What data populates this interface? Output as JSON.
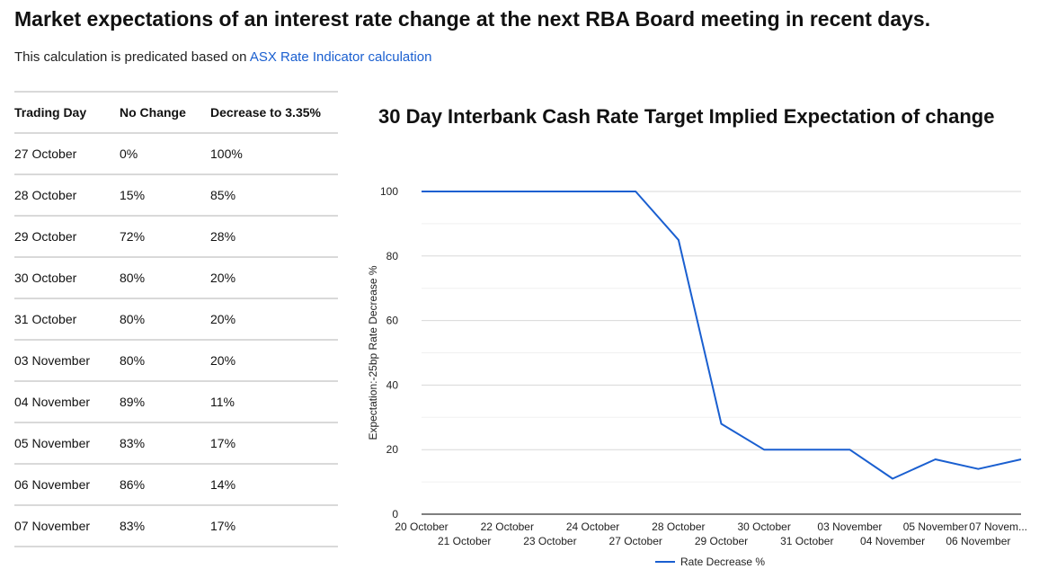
{
  "header": {
    "title": "Market expectations of an interest rate change at the next RBA Board meeting in recent days.",
    "subtitle_prefix": "This calculation is predicated based on ",
    "subtitle_link": "ASX Rate Indicator calculation"
  },
  "table": {
    "headers": [
      "Trading Day",
      "No Change",
      "Decrease to 3.35%"
    ],
    "rows": [
      [
        "27 October",
        "0%",
        "100%"
      ],
      [
        "28 October",
        "15%",
        "85%"
      ],
      [
        "29 October",
        "72%",
        "28%"
      ],
      [
        "30 October",
        "80%",
        "20%"
      ],
      [
        "31 October",
        "80%",
        "20%"
      ],
      [
        "03 November",
        "80%",
        "20%"
      ],
      [
        "04 November",
        "89%",
        "11%"
      ],
      [
        "05 November",
        "83%",
        "17%"
      ],
      [
        "06 November",
        "86%",
        "14%"
      ],
      [
        "07 November",
        "83%",
        "17%"
      ]
    ]
  },
  "chart_data": {
    "type": "line",
    "title": "30 Day Interbank Cash Rate Target Implied Expectation of change",
    "xlabel": "",
    "ylabel": "Expectation:-25bp Rate Decrease %",
    "categories": [
      "20 October",
      "21 October",
      "22 October",
      "23 October",
      "24 October",
      "27 October",
      "28 October",
      "29 October",
      "30 October",
      "31 October",
      "03 November",
      "04 November",
      "05 November",
      "06 November",
      "07 Novem..."
    ],
    "series": [
      {
        "name": "Rate Decrease %",
        "values": [
          100,
          100,
          100,
          100,
          100,
          100,
          85,
          28,
          20,
          20,
          20,
          11,
          17,
          14,
          17
        ]
      }
    ],
    "ylim": [
      0,
      100
    ],
    "yticks": [
      0,
      20,
      40,
      60,
      80,
      100
    ],
    "grid": true,
    "legend": "bottom",
    "colors": {
      "line": "#1a5fd0",
      "grid": "#e6e6e6",
      "axis": "#333333"
    }
  }
}
